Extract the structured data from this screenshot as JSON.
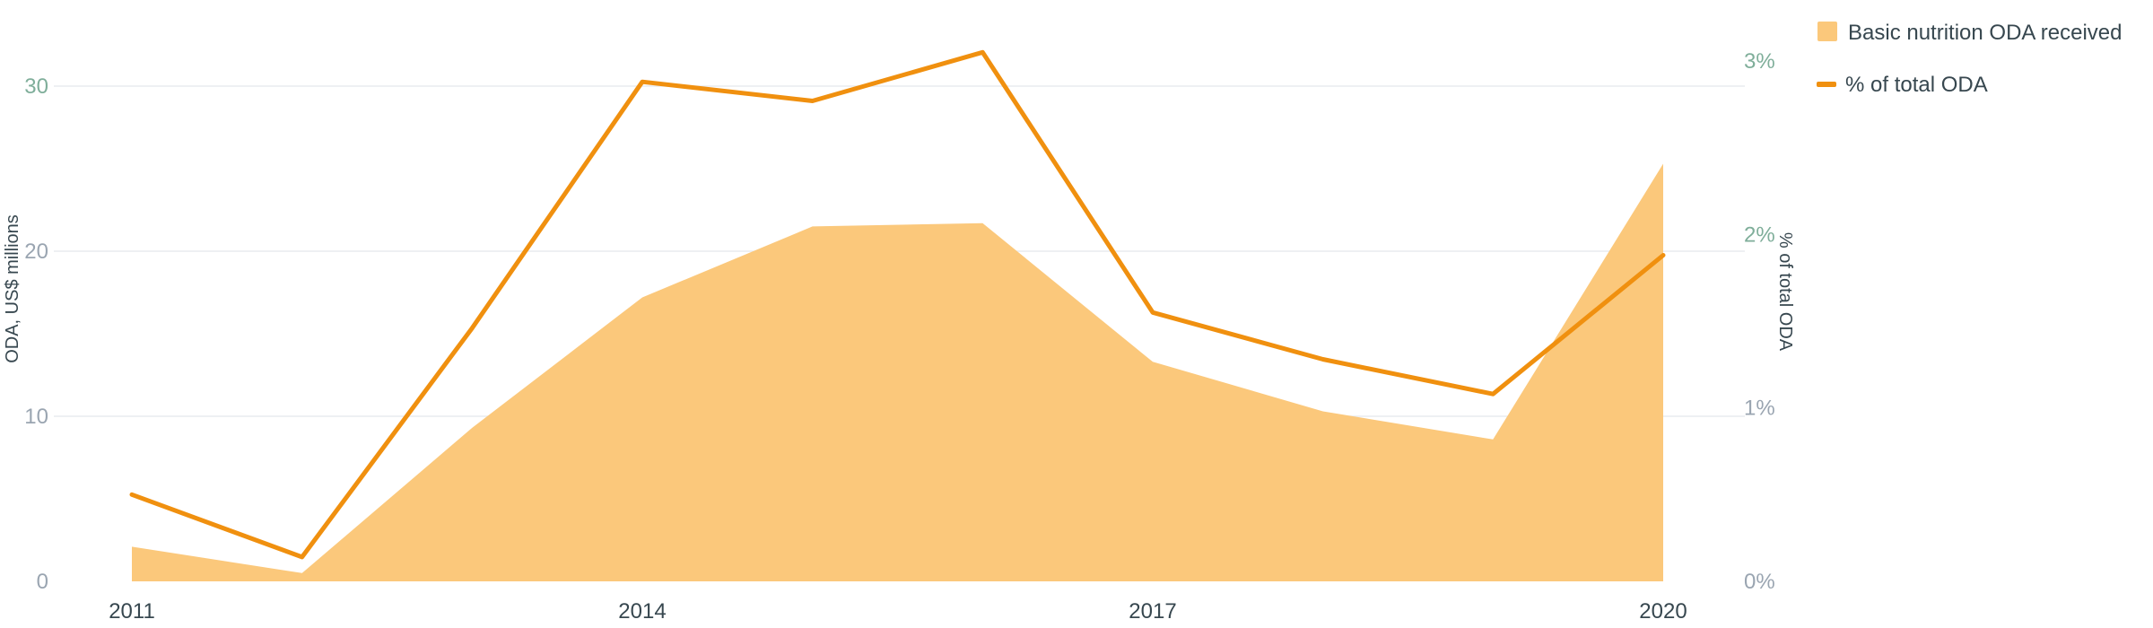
{
  "chart_data": {
    "type": "area+line",
    "x": [
      2011,
      2012,
      2013,
      2014,
      2015,
      2016,
      2017,
      2018,
      2019,
      2020
    ],
    "series": [
      {
        "name": "Basic nutrition ODA received",
        "type": "area",
        "axis": "left",
        "values": [
          2.1,
          0.5,
          9.3,
          17.2,
          21.5,
          21.7,
          13.3,
          10.3,
          8.6,
          25.3
        ]
      },
      {
        "name": "% of total ODA",
        "type": "line",
        "axis": "right",
        "values": [
          0.5,
          0.14,
          1.46,
          2.88,
          2.77,
          3.05,
          1.55,
          1.28,
          1.08,
          1.88
        ]
      }
    ],
    "xlabel": "",
    "x_ticks": [
      "2011",
      "2014",
      "2017",
      "2020"
    ],
    "ylabel_left": "ODA, US$ millions",
    "ylim_left": [
      0,
      30
    ],
    "y_ticks_left": [
      "0",
      "10",
      "20",
      "30"
    ],
    "ylabel_right": "% of total ODA",
    "ylim_right": [
      0,
      3
    ],
    "y_ticks_right": [
      "0%",
      "1%",
      "2%",
      "3%"
    ],
    "grid": true,
    "legend_position": "top-right",
    "colors": {
      "area": "#fbc87b",
      "line": "#f0900f",
      "left_tick_top": "#7fae9a",
      "left_tick_bottom": "#9aa5b1",
      "right_tick": "#9aa5b1",
      "grid": "#e9ecef",
      "axis_text": "#37474f"
    }
  }
}
